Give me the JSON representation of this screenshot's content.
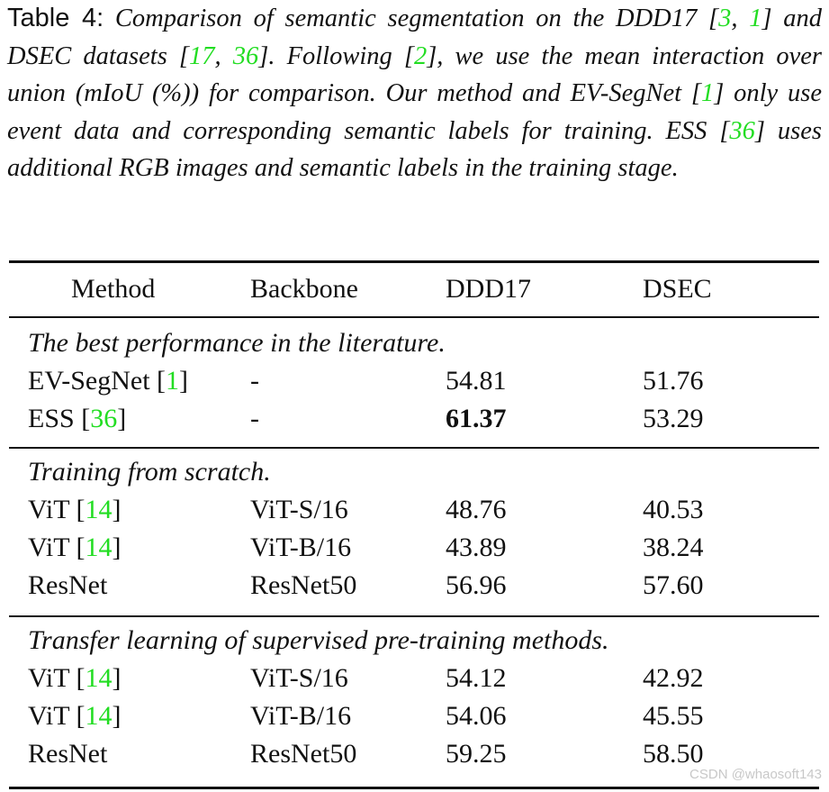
{
  "caption": {
    "lead": "Table 4:",
    "parts": [
      {
        "t": "Comparison of semantic segmentation on the DDD17 ["
      },
      {
        "t": "3",
        "ref": true
      },
      {
        "t": ", "
      },
      {
        "t": "1",
        "ref": true
      },
      {
        "t": "] and DSEC datasets ["
      },
      {
        "t": "17",
        "ref": true
      },
      {
        "t": ", "
      },
      {
        "t": "36",
        "ref": true
      },
      {
        "t": "]. Following ["
      },
      {
        "t": "2",
        "ref": true
      },
      {
        "t": "], we use the mean interaction over union (mIoU (%)) for comparison. Our method and EV-SegNet ["
      },
      {
        "t": "1",
        "ref": true
      },
      {
        "t": "] only use event data and corresponding semantic labels for training. ESS ["
      },
      {
        "t": "36",
        "ref": true
      },
      {
        "t": "] uses additional RGB images and semantic labels in the training stage."
      }
    ]
  },
  "table": {
    "headers": [
      "Method",
      "Backbone",
      "DDD17",
      "DSEC"
    ],
    "sections": [
      {
        "title": "The best performance in the literature.",
        "rows": [
          {
            "method": "EV-SegNet",
            "ref": "1",
            "backbone": "-",
            "ddd17": "54.81",
            "dsec": "51.76",
            "bold_ddd17": false
          },
          {
            "method": "ESS",
            "ref": "36",
            "backbone": "-",
            "ddd17": "61.37",
            "dsec": "53.29",
            "bold_ddd17": true
          }
        ]
      },
      {
        "title": "Training from scratch.",
        "rows": [
          {
            "method": "ViT",
            "ref": "14",
            "backbone": "ViT-S/16",
            "ddd17": "48.76",
            "dsec": "40.53",
            "bold_ddd17": false
          },
          {
            "method": "ViT",
            "ref": "14",
            "backbone": "ViT-B/16",
            "ddd17": "43.89",
            "dsec": "38.24",
            "bold_ddd17": false
          },
          {
            "method": "ResNet",
            "ref": "",
            "backbone": "ResNet50",
            "ddd17": "56.96",
            "dsec": "57.60",
            "bold_ddd17": false
          }
        ]
      },
      {
        "title": "Transfer learning of supervised pre-training methods.",
        "rows": [
          {
            "method": "ViT",
            "ref": "14",
            "backbone": "ViT-S/16",
            "ddd17": "54.12",
            "dsec": "42.92",
            "bold_ddd17": false
          },
          {
            "method": "ViT",
            "ref": "14",
            "backbone": "ViT-B/16",
            "ddd17": "54.06",
            "dsec": "45.55",
            "bold_ddd17": false
          },
          {
            "method": "ResNet",
            "ref": "",
            "backbone": "ResNet50",
            "ddd17": "59.25",
            "dsec": "58.50",
            "bold_ddd17": false
          }
        ]
      }
    ]
  },
  "watermark": "CSDN @whaosoft143",
  "colors": {
    "ref": "#22dd22",
    "text": "#111111"
  }
}
